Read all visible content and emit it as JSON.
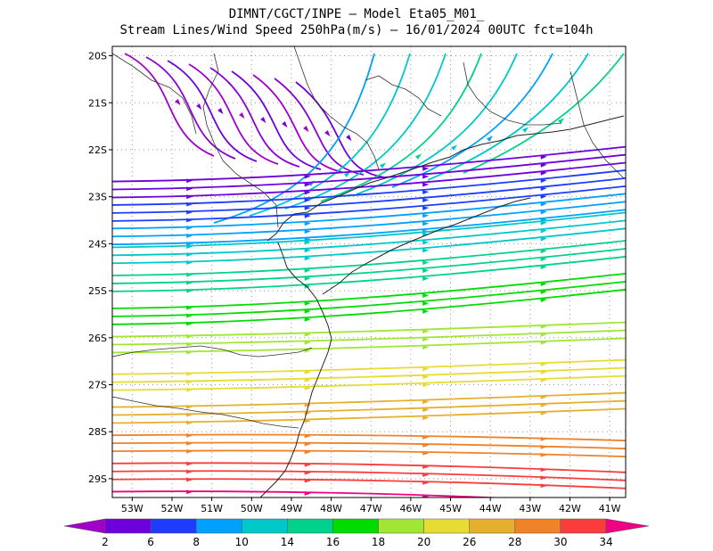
{
  "header": {
    "line1": "DIMNT/CGCT/INPE –  Model Eta05_M01_",
    "line2": "Stream Lines/Wind Speed 250hPa(m/s) –  16/01/2024 00UTC fct=104h"
  },
  "map": {
    "lat_labels": [
      "20S",
      "21S",
      "22S",
      "23S",
      "24S",
      "25S",
      "26S",
      "27S",
      "28S",
      "29S"
    ],
    "lon_labels": [
      "53W",
      "52W",
      "51W",
      "50W",
      "49W",
      "48W",
      "47W",
      "46W",
      "45W",
      "44W",
      "43W",
      "42W",
      "41W"
    ],
    "lat_range": [
      -29.4,
      -19.8
    ],
    "lon_range": [
      -53.5,
      -40.6
    ]
  },
  "colorbar": {
    "labels": [
      "2",
      "6",
      "8",
      "10",
      "14",
      "16",
      "18",
      "20",
      "26",
      "28",
      "30",
      "34"
    ],
    "colors": [
      "#a000c8",
      "#6e00dc",
      "#1e3cff",
      "#00a0ff",
      "#00c8c8",
      "#00d28c",
      "#00dc00",
      "#a0e632",
      "#e6dc32",
      "#e6af2d",
      "#f08228",
      "#fa3c3c",
      "#f00082"
    ]
  },
  "streamlines": [
    {
      "speed_class": 0,
      "color": "#a000c8",
      "lat": -20.2
    },
    {
      "speed_class": 1,
      "color": "#6e00dc",
      "lat": -22.6
    },
    {
      "speed_class": 2,
      "color": "#1e3cff",
      "lat": -23.1
    },
    {
      "speed_class": 3,
      "color": "#00a0ff",
      "lat": -23.6
    },
    {
      "speed_class": 4,
      "color": "#00c8c8",
      "lat": -24.0
    },
    {
      "speed_class": 5,
      "color": "#00d28c",
      "lat": -24.6
    },
    {
      "speed_class": 6,
      "color": "#00dc00",
      "lat": -25.3
    },
    {
      "speed_class": 7,
      "color": "#a0e632",
      "lat": -25.9
    },
    {
      "speed_class": 8,
      "color": "#e6dc32",
      "lat": -26.7
    },
    {
      "speed_class": 9,
      "color": "#e6af2d",
      "lat": -27.4
    },
    {
      "speed_class": 10,
      "color": "#f08228",
      "lat": -28.0
    },
    {
      "speed_class": 11,
      "color": "#fa3c3c",
      "lat": -28.6
    },
    {
      "speed_class": 12,
      "color": "#f00082",
      "lat": -29.2
    }
  ]
}
